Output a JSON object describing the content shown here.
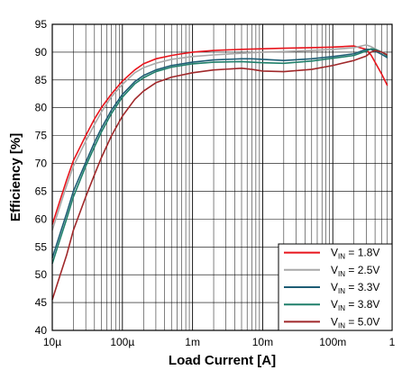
{
  "chart_data": {
    "type": "line",
    "xlabel": "Load Current [A]",
    "ylabel": "Efficiency [%]",
    "xscale": "log",
    "xlim": [
      1e-05,
      0.7
    ],
    "ylim": [
      40,
      95
    ],
    "grid": true,
    "legend_position": "bottom-right",
    "x_tick_labels": [
      {
        "value": 1e-05,
        "label": "10µ"
      },
      {
        "value": 0.0001,
        "label": "100µ"
      },
      {
        "value": 0.001,
        "label": "1m"
      },
      {
        "value": 0.01,
        "label": "10m"
      },
      {
        "value": 0.1,
        "label": "100m"
      },
      {
        "value": 1,
        "label": "1"
      }
    ],
    "y_tick_labels": [
      "95",
      "90",
      "85",
      "80",
      "75",
      "70",
      "65",
      "60",
      "55",
      "50",
      "45",
      "40"
    ],
    "series": [
      {
        "name": "V_IN = 1.8V",
        "label_main": "V",
        "label_sub": "IN",
        "label_rest": " = 1.8V",
        "color": "#e8141c",
        "x": [
          1e-05,
          1.3e-05,
          1.6e-05,
          2e-05,
          3e-05,
          4e-05,
          5e-05,
          7e-05,
          0.0001,
          0.00015,
          0.0002,
          0.0003,
          0.0005,
          0.0007,
          0.001,
          0.002,
          0.005,
          0.01,
          0.02,
          0.05,
          0.1,
          0.2,
          0.3,
          0.35,
          0.4,
          0.5,
          0.6
        ],
        "y": [
          59,
          63.5,
          67,
          70.5,
          75,
          78,
          80,
          82.5,
          84.8,
          86.8,
          87.9,
          88.8,
          89.4,
          89.7,
          90,
          90.3,
          90.5,
          90.6,
          90.7,
          90.8,
          90.9,
          91.1,
          90.5,
          89.5,
          88.2,
          86,
          84
        ]
      },
      {
        "name": "V_IN = 2.5V",
        "label_main": "V",
        "label_sub": "IN",
        "label_rest": " = 2.5V",
        "color": "#a8a8a8",
        "x": [
          1e-05,
          1.3e-05,
          1.6e-05,
          2e-05,
          3e-05,
          4e-05,
          5e-05,
          7e-05,
          0.0001,
          0.00015,
          0.0002,
          0.0003,
          0.0005,
          0.001,
          0.002,
          0.005,
          0.01,
          0.02,
          0.05,
          0.1,
          0.2,
          0.3,
          0.35,
          0.4,
          0.5,
          0.6
        ],
        "y": [
          58,
          62.5,
          66,
          69.5,
          74,
          77,
          79.2,
          82,
          84.2,
          86.3,
          87.2,
          88,
          88.7,
          89.2,
          89.5,
          89.8,
          90,
          90.1,
          90.3,
          90.5,
          90.8,
          91.3,
          91,
          90.6,
          90,
          89.5
        ]
      },
      {
        "name": "V_IN = 3.3V",
        "label_main": "V",
        "label_sub": "IN",
        "label_rest": " = 3.3V",
        "color": "#1e5d74",
        "x": [
          1e-05,
          1.3e-05,
          1.6e-05,
          2e-05,
          3e-05,
          4e-05,
          5e-05,
          7e-05,
          0.0001,
          0.00015,
          0.0002,
          0.0003,
          0.0005,
          0.001,
          0.002,
          0.005,
          0.007,
          0.01,
          0.02,
          0.05,
          0.1,
          0.2,
          0.3,
          0.35,
          0.4,
          0.5,
          0.6
        ],
        "y": [
          53,
          57.5,
          61,
          65,
          70.2,
          73.8,
          76.3,
          79.6,
          82.4,
          84.7,
          85.8,
          86.8,
          87.6,
          88.2,
          88.6,
          88.8,
          88.8,
          88.7,
          88.5,
          88.8,
          89.2,
          89.7,
          90.5,
          90.5,
          90.2,
          89.6,
          89
        ]
      },
      {
        "name": "V_IN = 3.8V",
        "label_main": "V",
        "label_sub": "IN",
        "label_rest": " = 3.8V",
        "color": "#1f7f6a",
        "x": [
          1e-05,
          1.3e-05,
          1.6e-05,
          2e-05,
          3e-05,
          4e-05,
          5e-05,
          7e-05,
          0.0001,
          0.00015,
          0.0002,
          0.0003,
          0.0005,
          0.001,
          0.002,
          0.005,
          0.007,
          0.01,
          0.02,
          0.05,
          0.1,
          0.2,
          0.3,
          0.35,
          0.4,
          0.5,
          0.6
        ],
        "y": [
          52,
          56.5,
          60,
          64,
          69.5,
          73,
          75.6,
          79,
          81.9,
          84.3,
          85.4,
          86.5,
          87.3,
          87.9,
          88.2,
          88.3,
          88.2,
          88.1,
          88,
          88.4,
          88.9,
          89.4,
          90.2,
          90.6,
          90.5,
          90,
          89.3
        ]
      },
      {
        "name": "V_IN = 5.0V",
        "label_main": "V",
        "label_sub": "IN",
        "label_rest": " = 5.0V",
        "color": "#a0282a",
        "x": [
          1e-05,
          1.3e-05,
          1.6e-05,
          2e-05,
          3e-05,
          4e-05,
          5e-05,
          7e-05,
          0.0001,
          0.00015,
          0.0002,
          0.0003,
          0.0005,
          0.001,
          0.002,
          0.005,
          0.007,
          0.01,
          0.02,
          0.05,
          0.1,
          0.2,
          0.3,
          0.35,
          0.4,
          0.5,
          0.6
        ],
        "y": [
          45.5,
          50,
          53.5,
          58,
          64,
          68,
          71,
          75,
          78.5,
          81.5,
          83,
          84.5,
          85.5,
          86.3,
          86.8,
          87.1,
          86.9,
          86.6,
          86.5,
          86.9,
          87.6,
          88.5,
          89.3,
          90,
          90.3,
          90,
          89.5
        ]
      }
    ]
  }
}
